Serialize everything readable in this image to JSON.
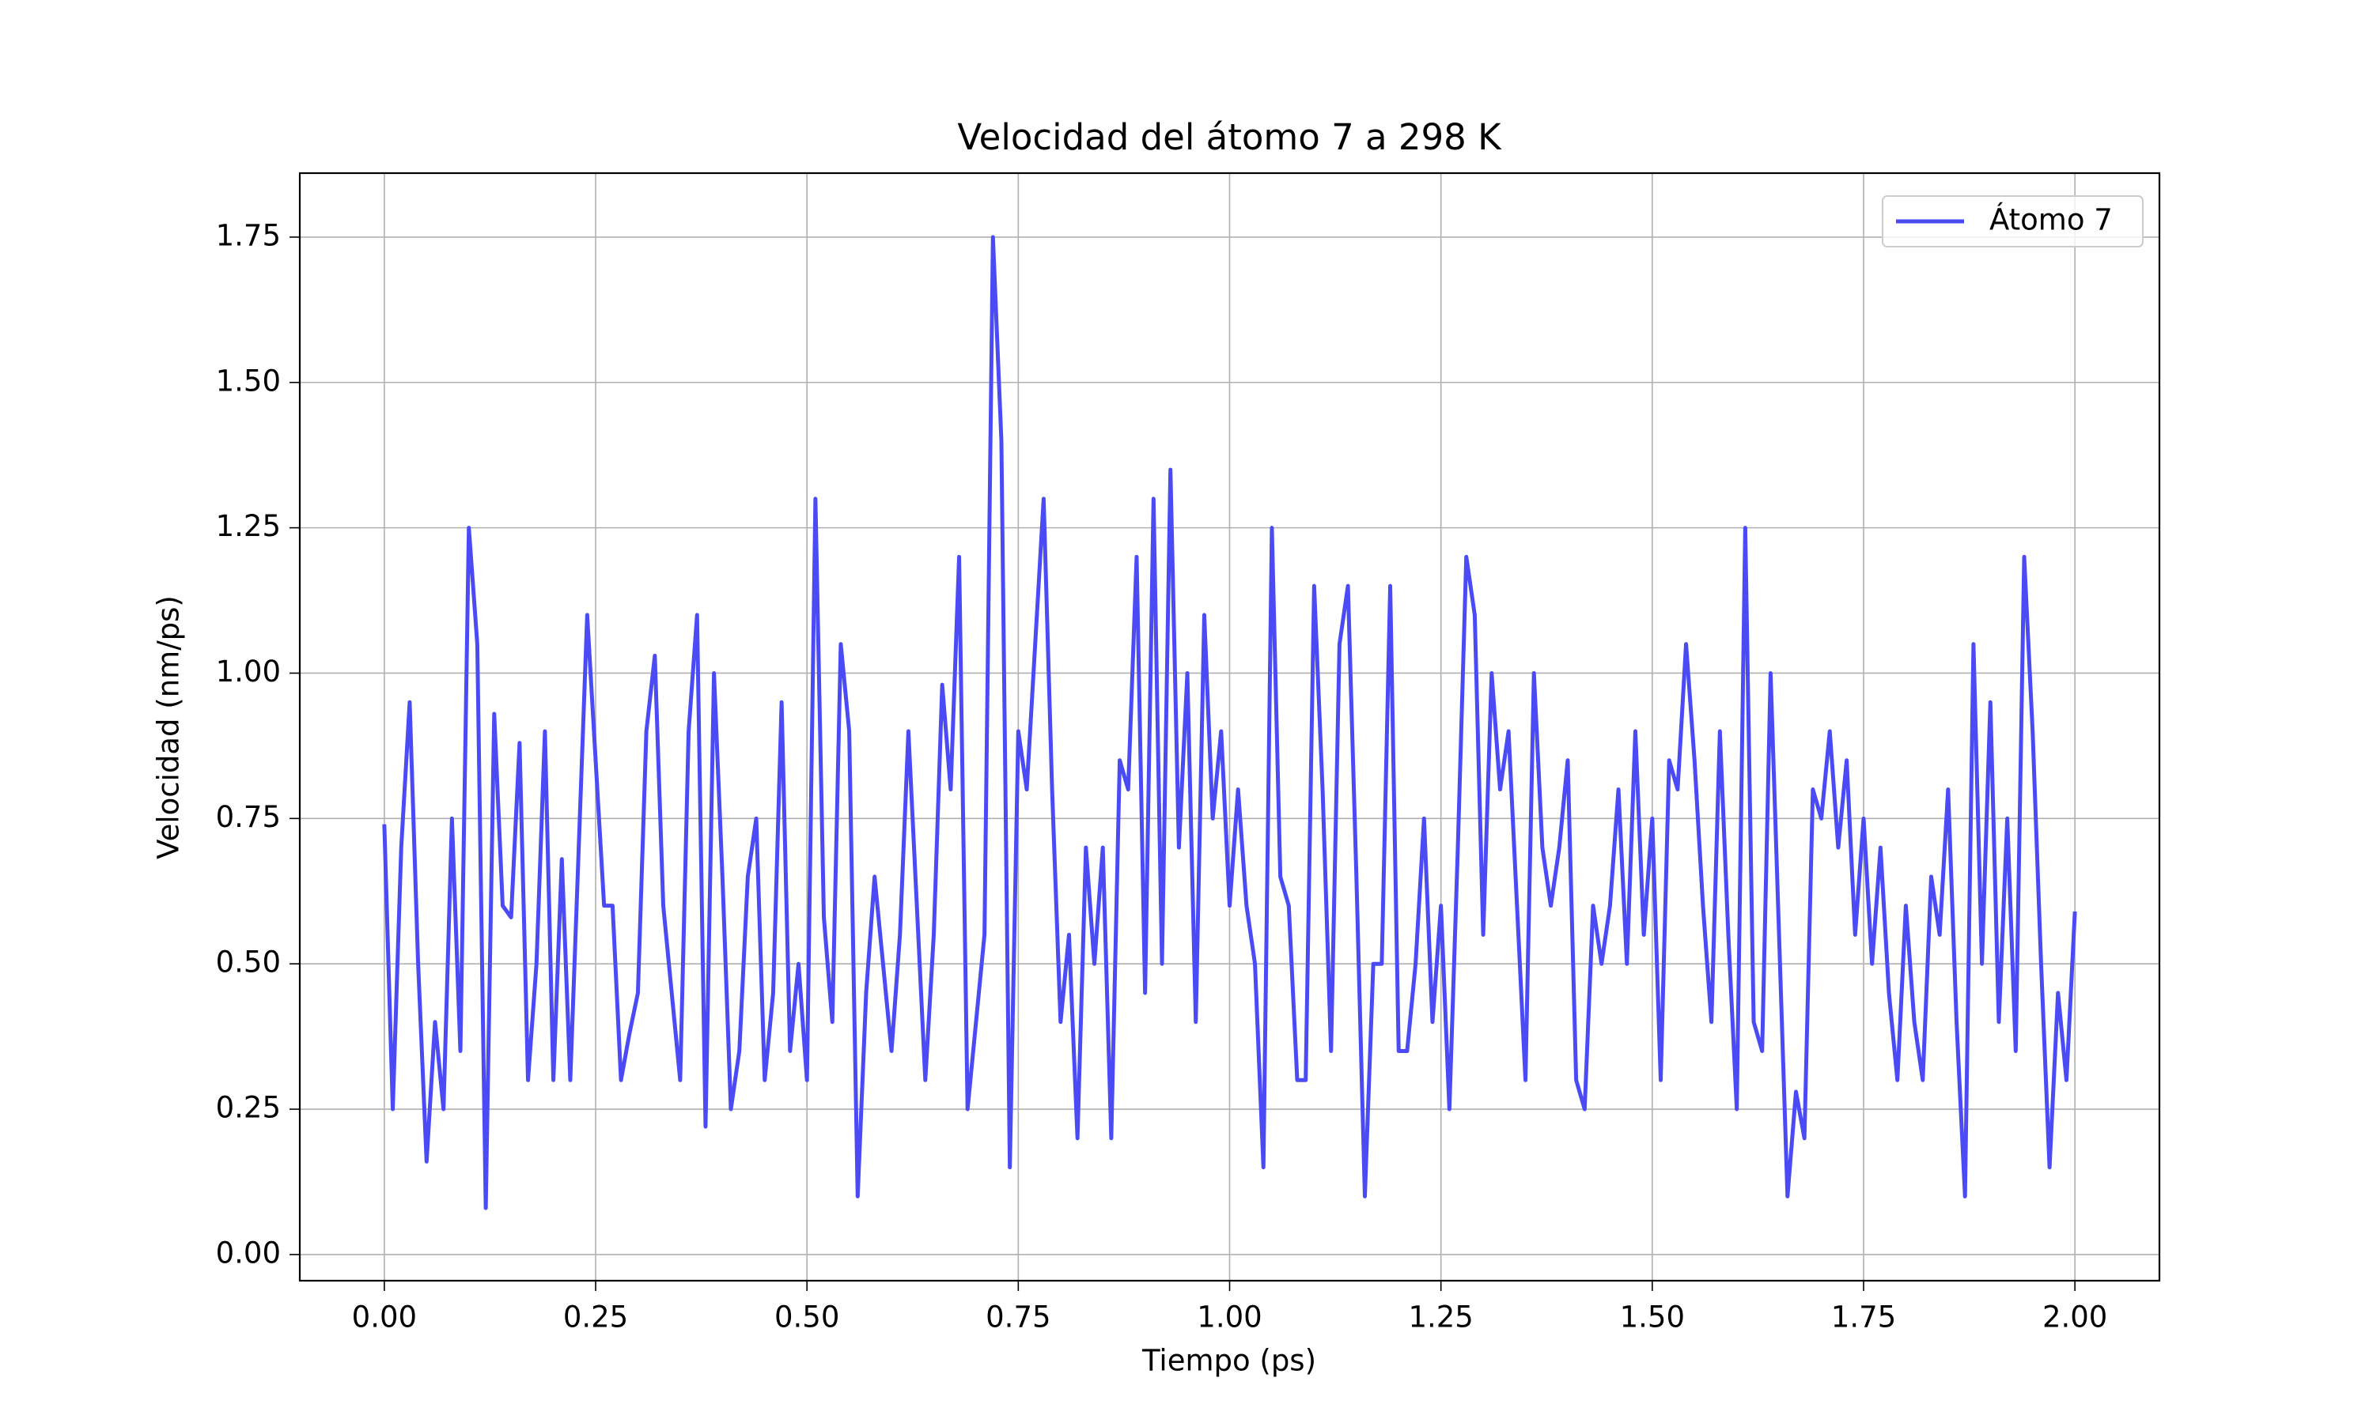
{
  "chart_data": {
    "type": "line",
    "title": "Velocidad del átomo 7 a 298 K",
    "xlabel": "Tiempo (ps)",
    "ylabel": "Velocidad (nm/ps)",
    "x": [
      0,
      0.01,
      0.02,
      0.03,
      0.04,
      0.05,
      0.06,
      0.07,
      0.08,
      0.09,
      0.1,
      0.11,
      0.12,
      0.13,
      0.14,
      0.15,
      0.16,
      0.17,
      0.18,
      0.19,
      0.2,
      0.21,
      0.22,
      0.23,
      0.24,
      0.25,
      0.26,
      0.27,
      0.28,
      0.29,
      0.3,
      0.31,
      0.32,
      0.33,
      0.34,
      0.35,
      0.36,
      0.37,
      0.38,
      0.39,
      0.4,
      0.41,
      0.42,
      0.43,
      0.44,
      0.45,
      0.46,
      0.47,
      0.48,
      0.49,
      0.5,
      0.51,
      0.52,
      0.53,
      0.54,
      0.55,
      0.56,
      0.57,
      0.58,
      0.59,
      0.6,
      0.61,
      0.62,
      0.63,
      0.64,
      0.65,
      0.66,
      0.67,
      0.68,
      0.69,
      0.7,
      0.71,
      0.72,
      0.73,
      0.74,
      0.75,
      0.76,
      0.77,
      0.78,
      0.79,
      0.8,
      0.81,
      0.82,
      0.83,
      0.84,
      0.85,
      0.86,
      0.87,
      0.88,
      0.89,
      0.9,
      0.91,
      0.92,
      0.93,
      0.94,
      0.95,
      0.96,
      0.97,
      0.98,
      0.99,
      1.0,
      1.01,
      1.02,
      1.03,
      1.04,
      1.05,
      1.06,
      1.07,
      1.08,
      1.09,
      1.1,
      1.11,
      1.12,
      1.13,
      1.14,
      1.15,
      1.16,
      1.17,
      1.18,
      1.19,
      1.2,
      1.21,
      1.22,
      1.23,
      1.24,
      1.25,
      1.26,
      1.27,
      1.28,
      1.29,
      1.3,
      1.31,
      1.32,
      1.33,
      1.34,
      1.35,
      1.36,
      1.37,
      1.38,
      1.39,
      1.4,
      1.41,
      1.42,
      1.43,
      1.44,
      1.45,
      1.46,
      1.47,
      1.48,
      1.49,
      1.5,
      1.51,
      1.52,
      1.53,
      1.54,
      1.55,
      1.56,
      1.57,
      1.58,
      1.59,
      1.6,
      1.61,
      1.62,
      1.63,
      1.64,
      1.65,
      1.66,
      1.67,
      1.68,
      1.69,
      1.7,
      1.71,
      1.72,
      1.73,
      1.74,
      1.75,
      1.76,
      1.77,
      1.78,
      1.79,
      1.8,
      1.81,
      1.82,
      1.83,
      1.84,
      1.85,
      1.86,
      1.87,
      1.88,
      1.89,
      1.9,
      1.91,
      1.92,
      1.93,
      1.94,
      1.95,
      1.96,
      1.97,
      1.98,
      1.99,
      2.0
    ],
    "series": [
      {
        "name": "Átomo 7",
        "color": "#4b4bf5",
        "values": [
          0.74,
          0.25,
          0.7,
          0.95,
          0.5,
          0.16,
          0.4,
          0.25,
          0.75,
          0.35,
          1.25,
          1.05,
          0.08,
          0.93,
          0.6,
          0.58,
          0.88,
          0.3,
          0.5,
          0.9,
          0.3,
          0.68,
          0.3,
          0.7,
          1.1,
          0.85,
          0.6,
          0.6,
          0.3,
          0.38,
          0.45,
          0.9,
          1.03,
          0.6,
          0.45,
          0.3,
          0.9,
          1.1,
          0.22,
          1.0,
          0.65,
          0.25,
          0.35,
          0.65,
          0.75,
          0.3,
          0.45,
          0.95,
          0.35,
          0.5,
          0.3,
          1.3,
          0.58,
          0.4,
          1.05,
          0.9,
          0.1,
          0.45,
          0.65,
          0.5,
          0.35,
          0.55,
          0.9,
          0.6,
          0.3,
          0.55,
          0.98,
          0.8,
          1.2,
          0.25,
          0.4,
          0.55,
          1.75,
          1.4,
          0.15,
          0.9,
          0.8,
          1.05,
          1.3,
          0.8,
          0.4,
          0.55,
          0.2,
          0.7,
          0.5,
          0.7,
          0.2,
          0.85,
          0.8,
          1.2,
          0.45,
          1.3,
          0.5,
          1.35,
          0.7,
          1.0,
          0.4,
          1.1,
          0.75,
          0.9,
          0.6,
          0.8,
          0.6,
          0.5,
          0.15,
          1.25,
          0.65,
          0.6,
          0.3,
          0.3,
          1.15,
          0.8,
          0.35,
          1.05,
          1.15,
          0.65,
          0.1,
          0.5,
          0.5,
          1.15,
          0.35,
          0.35,
          0.5,
          0.75,
          0.4,
          0.6,
          0.25,
          0.7,
          1.2,
          1.1,
          0.55,
          1.0,
          0.8,
          0.9,
          0.6,
          0.3,
          1.0,
          0.7,
          0.6,
          0.7,
          0.85,
          0.3,
          0.25,
          0.6,
          0.5,
          0.6,
          0.8,
          0.5,
          0.9,
          0.55,
          0.75,
          0.3,
          0.85,
          0.8,
          1.05,
          0.85,
          0.6,
          0.4,
          0.9,
          0.55,
          0.25,
          1.25,
          0.4,
          0.35,
          1.0,
          0.55,
          0.1,
          0.28,
          0.2,
          0.8,
          0.75,
          0.9,
          0.7,
          0.85,
          0.55,
          0.75,
          0.5,
          0.7,
          0.45,
          0.3,
          0.6,
          0.4,
          0.3,
          0.65,
          0.55,
          0.8,
          0.4,
          0.1,
          1.05,
          0.5,
          0.95,
          0.4,
          0.75,
          0.35,
          1.2,
          0.9,
          0.5,
          0.15,
          0.45,
          0.3,
          0.59
        ]
      }
    ],
    "xlim": [
      -0.1,
      2.1
    ],
    "ylim": [
      -0.045,
      1.86
    ],
    "xticks": [
      {
        "value": 0,
        "label": "0.00"
      },
      {
        "value": 0.25,
        "label": "0.25"
      },
      {
        "value": 0.5,
        "label": "0.50"
      },
      {
        "value": 0.75,
        "label": "0.75"
      },
      {
        "value": 1,
        "label": "1.00"
      },
      {
        "value": 1.25,
        "label": "1.25"
      },
      {
        "value": 1.5,
        "label": "1.50"
      },
      {
        "value": 1.75,
        "label": "1.75"
      },
      {
        "value": 2,
        "label": "2.00"
      }
    ],
    "yticks": [
      {
        "value": 0,
        "label": "0.00"
      },
      {
        "value": 0.25,
        "label": "0.25"
      },
      {
        "value": 0.5,
        "label": "0.50"
      },
      {
        "value": 0.75,
        "label": "0.75"
      },
      {
        "value": 1,
        "label": "1.00"
      },
      {
        "value": 1.25,
        "label": "1.25"
      },
      {
        "value": 1.5,
        "label": "1.50"
      },
      {
        "value": 1.75,
        "label": "1.75"
      }
    ],
    "grid": true,
    "legend": "upper right"
  }
}
